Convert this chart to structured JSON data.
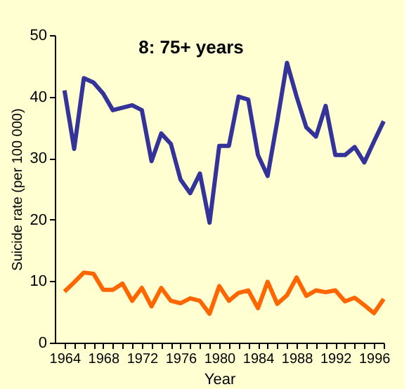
{
  "chart_data": {
    "type": "line",
    "title": "8: 75+ years",
    "xlabel": "Year",
    "ylabel": "Suicide rate (per 100 000)",
    "x": [
      1964,
      1965,
      1966,
      1967,
      1968,
      1969,
      1970,
      1971,
      1972,
      1973,
      1974,
      1975,
      1976,
      1977,
      1978,
      1979,
      1980,
      1981,
      1982,
      1983,
      1984,
      1985,
      1986,
      1987,
      1988,
      1989,
      1990,
      1991,
      1992,
      1993,
      1994,
      1995,
      1996,
      1997
    ],
    "series": [
      {
        "color": "#333399",
        "values": [
          41,
          31.5,
          43,
          42.3,
          40.5,
          37.8,
          38.2,
          38.6,
          37.8,
          29.5,
          34,
          32.3,
          26.5,
          24.3,
          27.5,
          19.5,
          32,
          32,
          40,
          39.5,
          30.5,
          27.1,
          36,
          45.5,
          40,
          35,
          33.5,
          38.5,
          30.5,
          30.5,
          31.8,
          29.3,
          32.7,
          36
        ]
      },
      {
        "color": "#ff6600",
        "values": [
          8.3,
          9.8,
          11.4,
          11.2,
          8.6,
          8.6,
          9.6,
          6.8,
          8.9,
          5.9,
          8.9,
          6.8,
          6.4,
          7.2,
          6.8,
          4.7,
          9.2,
          6.8,
          8.1,
          8.5,
          5.6,
          9.9,
          6.3,
          7.7,
          10.6,
          7.6,
          8.5,
          8.2,
          8.5,
          6.7,
          7.3,
          6.1,
          4.8,
          7.1
        ]
      }
    ],
    "xlim": [
      1963,
      1997
    ],
    "xticks": [
      1964,
      {
        "value": 1965,
        "label": null
      },
      {
        "value": 1966,
        "label": null
      },
      {
        "value": 1967,
        "label": null
      },
      1968,
      {
        "value": 1969,
        "label": null
      },
      {
        "value": 1970,
        "label": null
      },
      {
        "value": 1971,
        "label": null
      },
      1972,
      {
        "value": 1973,
        "label": null
      },
      {
        "value": 1974,
        "label": null
      },
      {
        "value": 1975,
        "label": null
      },
      1976,
      {
        "value": 1977,
        "label": null
      },
      {
        "value": 1978,
        "label": null
      },
      {
        "value": 1979,
        "label": null
      },
      1980,
      {
        "value": 1981,
        "label": null
      },
      {
        "value": 1982,
        "label": null
      },
      {
        "value": 1983,
        "label": null
      },
      1984,
      {
        "value": 1985,
        "label": null
      },
      {
        "value": 1986,
        "label": null
      },
      {
        "value": 1987,
        "label": null
      },
      1988,
      {
        "value": 1989,
        "label": null
      },
      {
        "value": 1990,
        "label": null
      },
      {
        "value": 1991,
        "label": null
      },
      1992,
      {
        "value": 1993,
        "label": null
      },
      {
        "value": 1994,
        "label": null
      },
      {
        "value": 1995,
        "label": null
      },
      1996,
      {
        "value": 1997,
        "label": null
      }
    ],
    "ylim": [
      0,
      50
    ],
    "yticks": [
      0,
      10,
      20,
      30,
      40,
      50
    ],
    "grid": false,
    "legend": false,
    "line_style": "solid",
    "marker": "none"
  }
}
